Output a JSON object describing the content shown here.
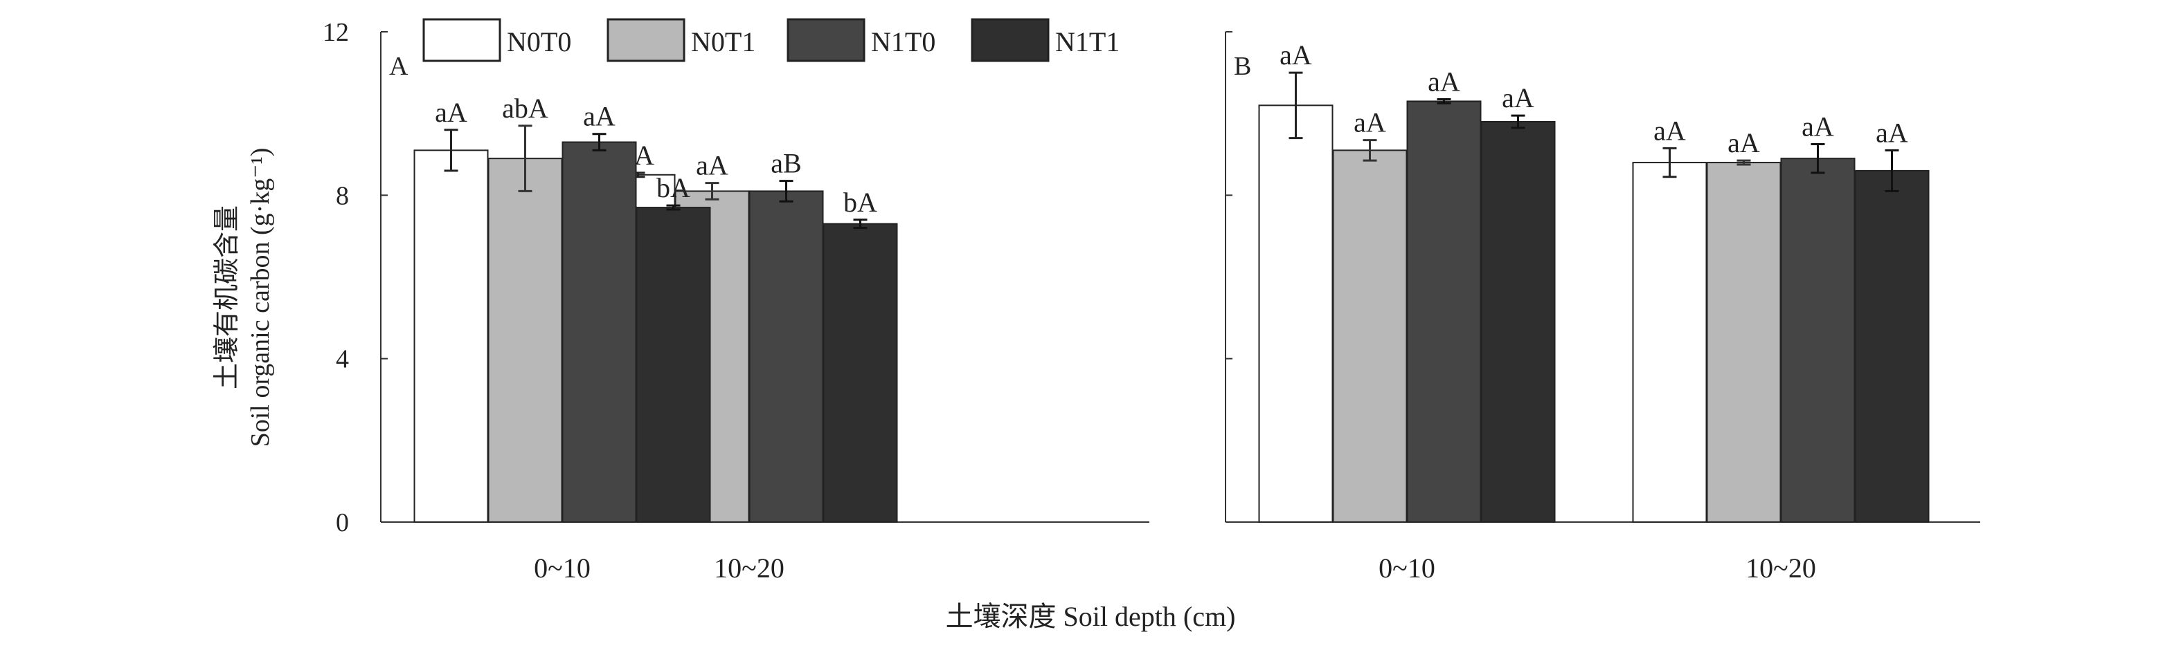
{
  "legend": [
    {
      "name": "N0T0",
      "color": "#ffffff"
    },
    {
      "name": "N0T1",
      "color": "#b8b8b8"
    },
    {
      "name": "N1T0",
      "color": "#454545"
    },
    {
      "name": "N1T1",
      "color": "#2f2f2f"
    }
  ],
  "axis": {
    "ylabel_cn": "土壤有机碳含量",
    "ylabel_en": "Soil organic carbon (g·kg⁻¹)",
    "xlabel": "土壤深度 Soil depth (cm)"
  },
  "chart_data": [
    {
      "panel": "A",
      "type": "bar",
      "categories": [
        "0~10",
        "10~20"
      ],
      "ylim": [
        0,
        12
      ],
      "yticks": [
        0,
        4,
        8,
        12
      ],
      "series": [
        {
          "name": "N0T0",
          "values": [
            9.1,
            8.5
          ],
          "errors": [
            0.5,
            0.05
          ],
          "labels": [
            "aA",
            "aA"
          ]
        },
        {
          "name": "N0T1",
          "values": [
            8.9,
            8.1
          ],
          "errors": [
            0.8,
            0.2
          ],
          "labels": [
            "abA",
            "aA"
          ]
        },
        {
          "name": "N1T0",
          "values": [
            9.3,
            8.1
          ],
          "errors": [
            0.2,
            0.25
          ],
          "labels": [
            "aA",
            "aB"
          ]
        },
        {
          "name": "N1T1",
          "values": [
            7.7,
            7.3
          ],
          "errors": [
            0.05,
            0.1
          ],
          "labels": [
            "bA",
            "bA"
          ]
        }
      ]
    },
    {
      "panel": "B",
      "type": "bar",
      "categories": [
        "0~10",
        "10~20"
      ],
      "ylim": [
        0,
        12
      ],
      "yticks": [
        0,
        4,
        8,
        12
      ],
      "series": [
        {
          "name": "N0T0",
          "values": [
            10.2,
            8.8
          ],
          "errors": [
            0.8,
            0.35
          ],
          "labels": [
            "aA",
            "aA"
          ]
        },
        {
          "name": "N0T1",
          "values": [
            9.1,
            8.8
          ],
          "errors": [
            0.25,
            0.05
          ],
          "labels": [
            "aA",
            "aA"
          ]
        },
        {
          "name": "N1T0",
          "values": [
            10.3,
            8.9
          ],
          "errors": [
            0.05,
            0.35
          ],
          "labels": [
            "aA",
            "aA"
          ]
        },
        {
          "name": "N1T1",
          "values": [
            9.8,
            8.6
          ],
          "errors": [
            0.15,
            0.5
          ],
          "labels": [
            "aA",
            "aA"
          ]
        }
      ]
    }
  ]
}
